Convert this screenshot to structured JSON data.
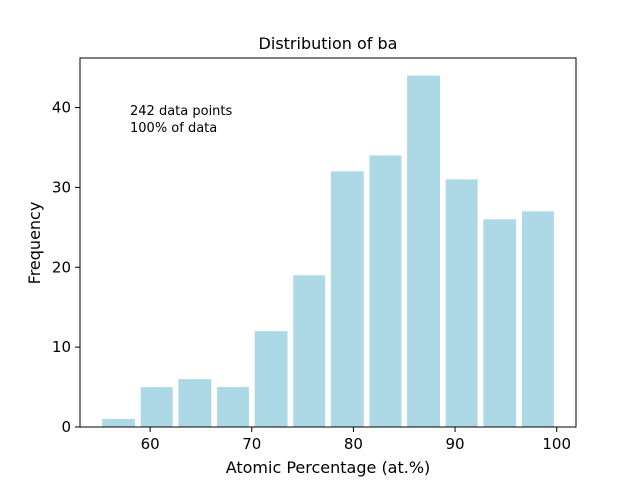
{
  "chart_data": {
    "type": "bar",
    "title": "Distribution of ba",
    "xlabel": "Atomic Percentage (at.%)",
    "ylabel": "Frequency",
    "bins": [
      {
        "x0": 55.0,
        "x1": 58.8,
        "value": 1
      },
      {
        "x0": 58.8,
        "x1": 62.5,
        "value": 5
      },
      {
        "x0": 62.5,
        "x1": 66.3,
        "value": 6
      },
      {
        "x0": 66.3,
        "x1": 70.0,
        "value": 5
      },
      {
        "x0": 70.0,
        "x1": 73.8,
        "value": 12
      },
      {
        "x0": 73.8,
        "x1": 77.5,
        "value": 19
      },
      {
        "x0": 77.5,
        "x1": 81.3,
        "value": 32
      },
      {
        "x0": 81.3,
        "x1": 85.0,
        "value": 34
      },
      {
        "x0": 85.0,
        "x1": 88.8,
        "value": 44
      },
      {
        "x0": 88.8,
        "x1": 92.5,
        "value": 31
      },
      {
        "x0": 92.5,
        "x1": 96.3,
        "value": 26
      },
      {
        "x0": 96.3,
        "x1": 100.0,
        "value": 27
      }
    ],
    "xlim": [
      53.1,
      101.9
    ],
    "ylim": [
      0,
      46.2
    ],
    "xticks": [
      60,
      70,
      80,
      90,
      100
    ],
    "yticks": [
      0,
      10,
      20,
      30,
      40
    ],
    "bar_color": "#add8e6",
    "grid": false,
    "annotations": [
      "242 data points",
      "100% of data"
    ]
  }
}
